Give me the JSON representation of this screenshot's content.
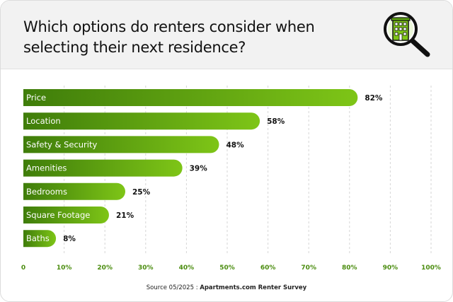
{
  "header": {
    "title": "Which options do renters consider when selecting their next residence?",
    "icon": "magnifier-building-icon"
  },
  "chart_data": {
    "type": "bar",
    "orientation": "horizontal",
    "categories": [
      "Price",
      "Location",
      "Safety & Security",
      "Amenities",
      "Bedrooms",
      "Square Footage",
      "Baths"
    ],
    "values": [
      82,
      58,
      48,
      39,
      25,
      21,
      8
    ],
    "value_labels": [
      "82%",
      "58%",
      "48%",
      "39%",
      "25%",
      "21%",
      "8%"
    ],
    "xlim": [
      0,
      100
    ],
    "xticks": [
      0,
      10,
      20,
      30,
      40,
      50,
      60,
      70,
      80,
      90,
      100
    ],
    "xtick_labels": [
      "0",
      "10%",
      "20%",
      "30%",
      "40%",
      "50%",
      "60%",
      "70%",
      "80%",
      "90%",
      "100%"
    ],
    "grid": "vertical-dashed",
    "title": "Which options do renters consider when selecting their next residence?",
    "colors": {
      "bar_start": "#3f7d0a",
      "bar_end": "#7ec517",
      "tick": "#4a8c0e",
      "grid": "#d6d6d6"
    }
  },
  "source": {
    "prefix": "Source 05/2025 : ",
    "name": "Apartments.com Renter Survey"
  }
}
